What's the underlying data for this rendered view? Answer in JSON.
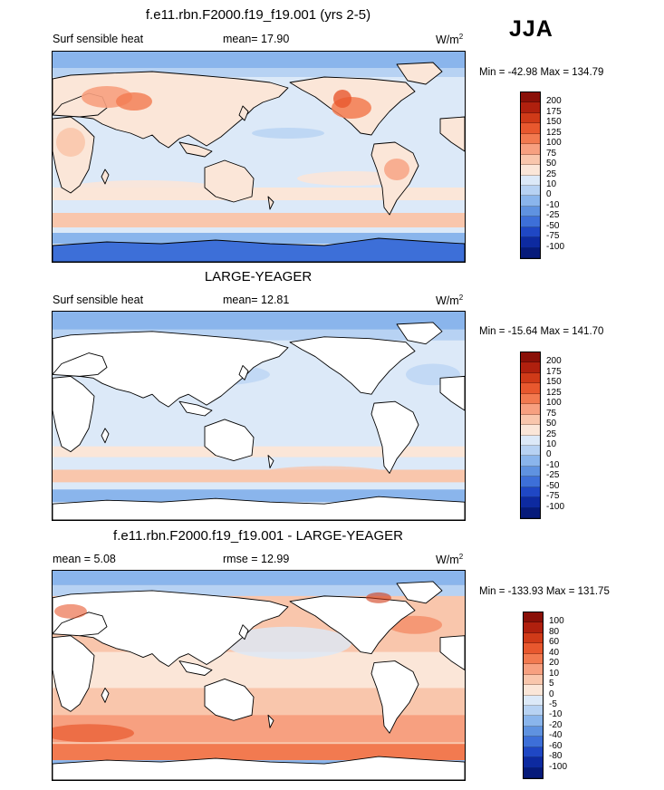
{
  "season": "JJA",
  "panels": [
    {
      "title": "f.e11.rbn.F2000.f19_f19.001 (yrs 2-5)",
      "left_label": "Surf sensible heat",
      "center_label": "mean=  17.90",
      "units_base": "W/m",
      "units_exp": "2",
      "minmax": "Min = -42.98 Max = 134.79",
      "colorbar": {
        "ticks": [
          "200",
          "175",
          "150",
          "125",
          "100",
          "75",
          "50",
          "25",
          "10",
          "0",
          "-10",
          "-25",
          "-50",
          "-75",
          "-100"
        ],
        "colors": [
          "#8a1008",
          "#b0200e",
          "#d03a18",
          "#e8582e",
          "#f27a50",
          "#f7a080",
          "#f9c6ac",
          "#fbe6d8",
          "#dce9f8",
          "#b7d2f3",
          "#8ab5ec",
          "#5f92e0",
          "#3d6fd8",
          "#1f47c4",
          "#0d2aa0",
          "#061a7a"
        ]
      }
    },
    {
      "title": "LARGE-YEAGER",
      "left_label": "Surf sensible heat",
      "center_label": "mean=  12.81",
      "units_base": "W/m",
      "units_exp": "2",
      "minmax": "Min = -15.64 Max = 141.70",
      "colorbar": {
        "ticks": [
          "200",
          "175",
          "150",
          "125",
          "100",
          "75",
          "50",
          "25",
          "10",
          "0",
          "-10",
          "-25",
          "-50",
          "-75",
          "-100"
        ],
        "colors": [
          "#8a1008",
          "#b0200e",
          "#d03a18",
          "#e8582e",
          "#f27a50",
          "#f7a080",
          "#f9c6ac",
          "#fbe6d8",
          "#dce9f8",
          "#b7d2f3",
          "#8ab5ec",
          "#5f92e0",
          "#3d6fd8",
          "#1f47c4",
          "#0d2aa0",
          "#061a7a"
        ]
      }
    },
    {
      "title": "f.e11.rbn.F2000.f19_f19.001 - LARGE-YEAGER",
      "left_label": "mean =   5.08",
      "center_label": "rmse =  12.99",
      "units_base": "W/m",
      "units_exp": "2",
      "minmax": "Min = -133.93 Max = 131.75",
      "colorbar": {
        "ticks": [
          "100",
          "80",
          "60",
          "40",
          "20",
          "10",
          "5",
          "0",
          "-5",
          "-10",
          "-20",
          "-40",
          "-60",
          "-80",
          "-100"
        ],
        "colors": [
          "#8a1008",
          "#b0200e",
          "#d03a18",
          "#e8582e",
          "#f27a50",
          "#f7a080",
          "#f9c6ac",
          "#fbe6d8",
          "#dce9f8",
          "#b7d2f3",
          "#8ab5ec",
          "#5f92e0",
          "#3d6fd8",
          "#1f47c4",
          "#0d2aa0",
          "#061a7a"
        ]
      }
    }
  ],
  "chart_data": [
    {
      "type": "heatmap",
      "title": "f.e11.rbn.F2000.f19_f19.001 (yrs 2-5)",
      "variable": "Surf sensible heat",
      "units": "W/m2",
      "mean": 17.9,
      "min": -42.98,
      "max": 134.79,
      "contour_levels": [
        -100,
        -75,
        -50,
        -25,
        -10,
        0,
        10,
        25,
        50,
        75,
        100,
        125,
        150,
        175,
        200
      ],
      "fill": {
        "land": "#fbe6d8",
        "ocean": "#dce9f8",
        "polar_ocean": "#5f92e0",
        "antarctica": "#3d6fd8"
      }
    },
    {
      "type": "heatmap",
      "title": "LARGE-YEAGER",
      "variable": "Surf sensible heat",
      "units": "W/m2",
      "mean": 12.81,
      "min": -15.64,
      "max": 141.7,
      "contour_levels": [
        -100,
        -75,
        -50,
        -25,
        -10,
        0,
        10,
        25,
        50,
        75,
        100,
        125,
        150,
        175,
        200
      ],
      "fill": {
        "land": "#ffffff",
        "ocean": "#dce9f8",
        "polar_ocean": "#8ab5ec",
        "antarctica": "#ffffff"
      }
    },
    {
      "type": "heatmap",
      "title": "f.e11.rbn.F2000.f19_f19.001 - LARGE-YEAGER",
      "units": "W/m2",
      "mean": 5.08,
      "rmse": 12.99,
      "min": -133.93,
      "max": 131.75,
      "contour_levels": [
        -100,
        -80,
        -60,
        -40,
        -20,
        -10,
        -5,
        0,
        5,
        10,
        20,
        40,
        60,
        80,
        100
      ],
      "fill": {
        "land": "#ffffff",
        "ocean": "#f9c6ac",
        "polar_ocean": "#8ab5ec",
        "antarctica": "#ffffff"
      }
    }
  ]
}
